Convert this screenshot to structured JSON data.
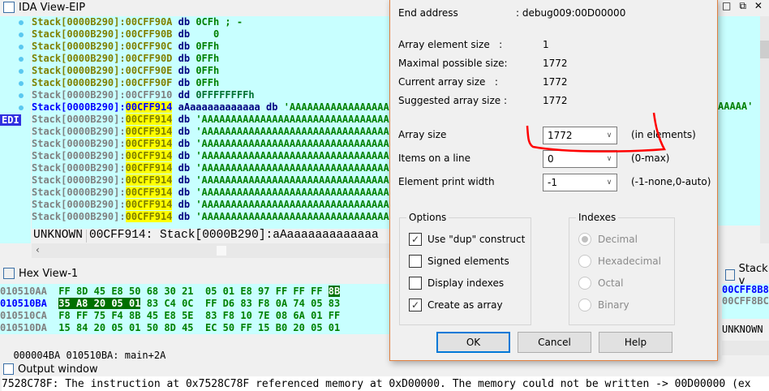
{
  "ida_view": {
    "title": "IDA View-EIP",
    "edi_label": "EDI",
    "rows": [
      {
        "seg": "Stack[0000B290]:",
        "addr": "00CFF90A",
        "ins": "db",
        "val": "0CFh ; -",
        "style": "olive"
      },
      {
        "seg": "Stack[0000B290]:",
        "addr": "00CFF90B",
        "ins": "db",
        "val": "   0",
        "style": "olive"
      },
      {
        "seg": "Stack[0000B290]:",
        "addr": "00CFF90C",
        "ins": "db",
        "val": "0FFh",
        "style": "olive"
      },
      {
        "seg": "Stack[0000B290]:",
        "addr": "00CFF90D",
        "ins": "db",
        "val": "0FFh",
        "style": "olive"
      },
      {
        "seg": "Stack[0000B290]:",
        "addr": "00CFF90E",
        "ins": "db",
        "val": "0FFh",
        "style": "olive"
      },
      {
        "seg": "Stack[0000B290]:",
        "addr": "00CFF90F",
        "ins": "db",
        "val": "0FFh",
        "style": "olive"
      },
      {
        "seg": "Stack[0000B290]:",
        "addr": "00CFF910",
        "ins": "dd",
        "val": "0FFFFFFFFh",
        "style": "gray"
      },
      {
        "seg": "Stack[0000B290]:",
        "addr": "00CFF914",
        "ins": "aAaaaaaaaaaaaa db",
        "val": "'AAAAAAAAAAAAAAAAAAAAAAAAAAA",
        "style": "current"
      },
      {
        "seg": "Stack[0000B290]:",
        "addr": "00CFF914",
        "ins": "db",
        "val": "'AAAAAAAAAAAAAAAAAAAAAAAAAAAAAAAAA",
        "style": "yellow"
      },
      {
        "seg": "Stack[0000B290]:",
        "addr": "00CFF914",
        "ins": "db",
        "val": "'AAAAAAAAAAAAAAAAAAAAAAAAAAAAAAAAA",
        "style": "yellow"
      },
      {
        "seg": "Stack[0000B290]:",
        "addr": "00CFF914",
        "ins": "db",
        "val": "'AAAAAAAAAAAAAAAAAAAAAAAAAAAAAAAAA",
        "style": "yellow"
      },
      {
        "seg": "Stack[0000B290]:",
        "addr": "00CFF914",
        "ins": "db",
        "val": "'AAAAAAAAAAAAAAAAAAAAAAAAAAAAAAAAA",
        "style": "yellow"
      },
      {
        "seg": "Stack[0000B290]:",
        "addr": "00CFF914",
        "ins": "db",
        "val": "'AAAAAAAAAAAAAAAAAAAAAAAAAAAAAAAAA",
        "style": "yellow"
      },
      {
        "seg": "Stack[0000B290]:",
        "addr": "00CFF914",
        "ins": "db",
        "val": "'AAAAAAAAAAAAAAAAAAAAAAAAAAAAAAAAA",
        "style": "yellow"
      },
      {
        "seg": "Stack[0000B290]:",
        "addr": "00CFF914",
        "ins": "db",
        "val": "'AAAAAAAAAAAAAAAAAAAAAAAAAAAAAAAAA",
        "style": "yellow"
      },
      {
        "seg": "Stack[0000B290]:",
        "addr": "00CFF914",
        "ins": "db",
        "val": "'AAAAAAAAAAAAAAAAAAAAAAAAAAAAAAAAA",
        "style": "yellow"
      },
      {
        "seg": "Stack[0000B290]:",
        "addr": "00CFF914",
        "ins": "db",
        "val": "'AAAAAAAAAAAAAAAAAAAAAAAAAAAAAAAAA",
        "style": "yellow"
      }
    ],
    "right_tail": "AAAAA'",
    "status_left": "UNKNOWN",
    "status_right": "00CFF914: Stack[0000B290]:aAaaaaaaaaaaaaa"
  },
  "hex_view": {
    "title": "Hex View-1",
    "rows": [
      {
        "addr": "010510AA",
        "bytes": [
          "FF",
          "8D",
          "45",
          "E8",
          "50",
          "68",
          "30",
          "21",
          "05",
          "01",
          "E8",
          "97",
          "FF",
          "FF",
          "FF",
          "8B"
        ]
      },
      {
        "addr": "010510BA",
        "bytes": [
          "35",
          "A8",
          "20",
          "05",
          "01",
          "83",
          "C4",
          "0C",
          "FF",
          "D6",
          "83",
          "F8",
          "0A",
          "74",
          "05",
          "83"
        ]
      },
      {
        "addr": "010510CA",
        "bytes": [
          "F8",
          "FF",
          "75",
          "F4",
          "8B",
          "45",
          "E8",
          "5E",
          "83",
          "F8",
          "10",
          "7E",
          "08",
          "6A",
          "01",
          "FF"
        ]
      },
      {
        "addr": "010510DA",
        "bytes": [
          "15",
          "84",
          "20",
          "05",
          "01",
          "50",
          "8D",
          "45",
          "EC",
          "50",
          "FF",
          "15",
          "B0",
          "20",
          "05",
          "01"
        ]
      }
    ],
    "status_offset": "000004BA",
    "status_loc": "010510BA: main+2A"
  },
  "stack_view": {
    "title": "Stack v",
    "rows": [
      "00CFF8B8",
      "00CFF8BC"
    ],
    "status": "UNKNOWN"
  },
  "output": {
    "title": "Output window",
    "text": "7528C78F: The instruction at 0x7528C78F referenced memory at 0xD00000. The memory could not be written -> 00D00000 (ex"
  },
  "dialog": {
    "end_address_label": "End address",
    "end_address_value": ": debug009:00D00000",
    "info": [
      {
        "label": "Array element size   :",
        "value": "1"
      },
      {
        "label": "Maximal possible size:",
        "value": "1772"
      },
      {
        "label": "Current array size   :",
        "value": "1772"
      },
      {
        "label": "Suggested array size :",
        "value": "1772"
      }
    ],
    "fields": [
      {
        "label": "Array size",
        "value": "1772",
        "hint": "(in elements)"
      },
      {
        "label": "Items on a line",
        "value": "0",
        "hint": "(0-max)"
      },
      {
        "label": "Element print width",
        "value": "-1",
        "hint": "(-1-none,0-auto)"
      }
    ],
    "options_title": "Options",
    "options": [
      {
        "label": "Use \"dup\" construct",
        "checked": true
      },
      {
        "label": "Signed elements",
        "checked": false
      },
      {
        "label": "Display indexes",
        "checked": false
      },
      {
        "label": "Create as array",
        "checked": true
      }
    ],
    "indexes_title": "Indexes",
    "indexes": [
      {
        "label": "Decimal",
        "selected": true
      },
      {
        "label": "Hexadecimal",
        "selected": false
      },
      {
        "label": "Octal",
        "selected": false
      },
      {
        "label": "Binary",
        "selected": false
      }
    ],
    "buttons": {
      "ok": "OK",
      "cancel": "Cancel",
      "help": "Help"
    },
    "annotation_color": "#ff0000"
  }
}
